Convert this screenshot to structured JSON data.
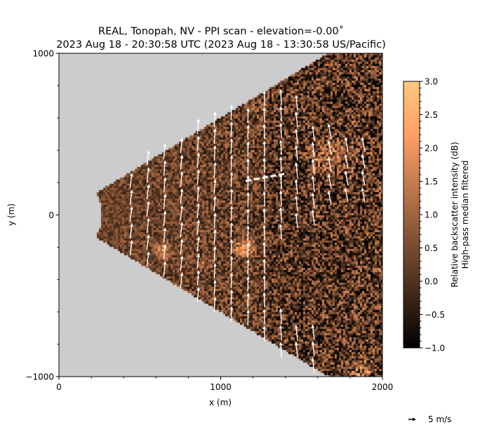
{
  "chart_data": {
    "type": "heatmap",
    "title": [
      "REAL, Tonopah, NV - PPI scan - elevation=-0.00˚",
      "2023 Aug 18 - 20:30:58 UTC (2023 Aug 18 - 13:30:58 US/Pacific)"
    ],
    "xlabel": "x (m)",
    "ylabel": "y (m)",
    "xlim": [
      0,
      2000
    ],
    "ylim": [
      -1000,
      1000
    ],
    "xticks": [
      {
        "v": 0,
        "label": "0"
      },
      {
        "v": 1000,
        "label": "1000"
      },
      {
        "v": 2000,
        "label": "2000"
      }
    ],
    "yticks": [
      {
        "v": -1000,
        "label": "−1000"
      },
      {
        "v": 0,
        "label": "0"
      },
      {
        "v": 1000,
        "label": "1000"
      }
    ],
    "minor_tick_step": 200,
    "background_color": "#cccccc",
    "sector": {
      "range_min_m": 265,
      "half_angle_deg": 31,
      "note": "backscatter field (random texture)"
    },
    "colorbar": {
      "label": [
        "Relative backscatter intensity (dB)",
        "High-pass median filtered"
      ],
      "colormap": "copper",
      "min": -1.0,
      "max": 3.0,
      "ticks": [
        {
          "v": 3.0,
          "label": "3.0"
        },
        {
          "v": 2.5,
          "label": "2.5"
        },
        {
          "v": 2.0,
          "label": "2.0"
        },
        {
          "v": 1.5,
          "label": "1.5"
        },
        {
          "v": 1.0,
          "label": "1.0"
        },
        {
          "v": 0.5,
          "label": "0.5"
        },
        {
          "v": 0.0,
          "label": "0.0"
        },
        {
          "v": -0.5,
          "label": "−0.5"
        },
        {
          "v": -1.0,
          "label": "−1.0"
        }
      ]
    },
    "quiver": {
      "key_speed": 5,
      "key_label": "5 m/s",
      "arrow_color": "#ffffff",
      "row_step_m": 104,
      "columns": [
        {
          "x": 440,
          "u": 1.2,
          "v": 10,
          "segments": [
            [
              -250,
              250
            ]
          ]
        },
        {
          "x": 544,
          "u": 1.2,
          "v": 10,
          "segments": [
            [
              -320,
              320
            ]
          ]
        },
        {
          "x": 648,
          "u": 1.0,
          "v": 10,
          "segments": [
            [
              -380,
              380
            ]
          ]
        },
        {
          "x": 752,
          "u": 1.0,
          "v": 10,
          "segments": [
            [
              -450,
              440
            ]
          ]
        },
        {
          "x": 856,
          "u": 0.8,
          "v": 10,
          "segments": [
            [
              -540,
              500
            ]
          ]
        },
        {
          "x": 960,
          "u": 0.6,
          "v": 10,
          "segments": [
            [
              -600,
              560
            ]
          ]
        },
        {
          "x": 1064,
          "u": 0.4,
          "v": 10,
          "segments": [
            [
              -660,
              620
            ]
          ]
        },
        {
          "x": 1168,
          "u": 0.2,
          "v": 10,
          "segments": [
            [
              -680,
              660
            ]
          ]
        },
        {
          "x": 1272,
          "u": -0.3,
          "v": 10,
          "segments": [
            [
              -780,
              760
            ]
          ]
        },
        {
          "x": 1376,
          "u": -0.6,
          "v": 10,
          "segments": [
            [
              -150,
              760
            ]
          ],
          "extra": [
            [
              -880,
              -590
            ]
          ]
        },
        {
          "x": 1475,
          "u": -1.0,
          "v": 10,
          "segments": [
            [
              -80,
              660
            ],
            [
              -880,
              -700
            ]
          ]
        },
        {
          "x": 1579,
          "u": -1.2,
          "v": 10,
          "segments": [
            [
              -60,
              550
            ],
            [
              -980,
              -700
            ]
          ]
        },
        {
          "x": 1683,
          "u": -1.8,
          "v": 9.5,
          "segments": [
            [
              60,
              540
            ]
          ]
        },
        {
          "x": 1787,
          "u": -1.8,
          "v": 9.5,
          "segments": [
            [
              80,
              460
            ]
          ]
        },
        {
          "x": 1891,
          "u": -1.8,
          "v": 9.5,
          "segments": [
            [
              80,
              420
            ]
          ]
        }
      ]
    },
    "annotation_line": {
      "style": "dashed",
      "color": "#ffffff",
      "from": [
        1154,
        210
      ],
      "to": [
        1393,
        254
      ]
    }
  }
}
